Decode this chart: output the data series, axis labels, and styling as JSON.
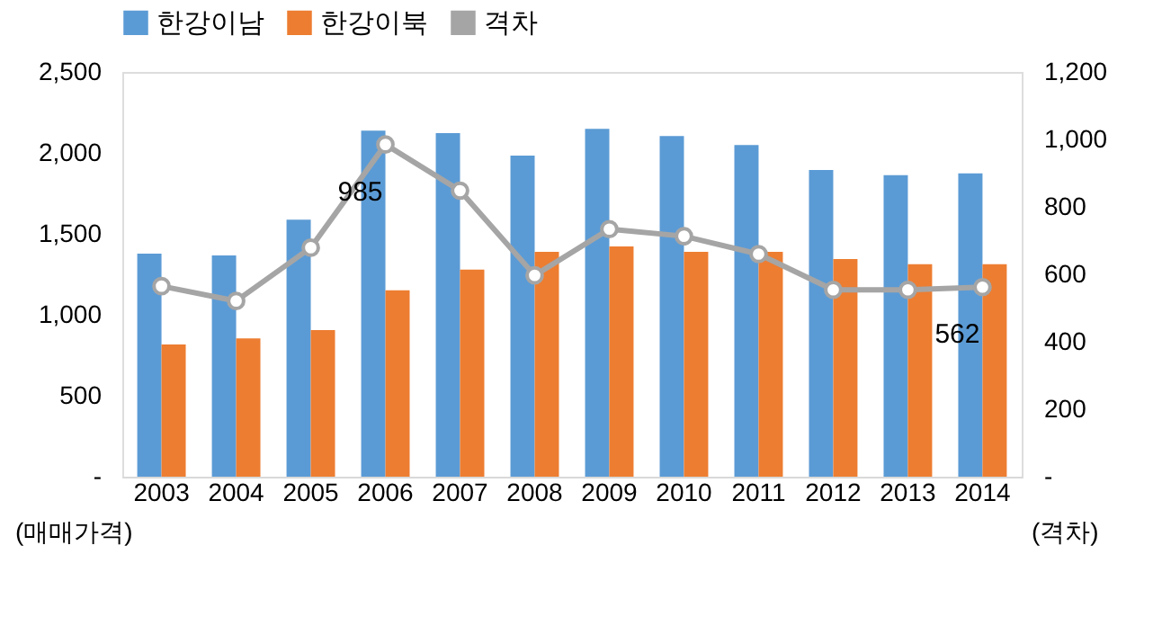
{
  "chart_data": {
    "type": "bar",
    "categories": [
      "2003",
      "2004",
      "2005",
      "2006",
      "2007",
      "2008",
      "2009",
      "2010",
      "2011",
      "2012",
      "2013",
      "2014"
    ],
    "series": [
      {
        "name": "한강이남",
        "type": "bar",
        "color": "#5b9bd5",
        "values": [
          1378,
          1367,
          1587,
          2137,
          2122,
          1983,
          2148,
          2104,
          2049,
          1895,
          1862,
          1873
        ]
      },
      {
        "name": "한강이북",
        "type": "bar",
        "color": "#ed7d31",
        "values": [
          817,
          854,
          905,
          1151,
          1279,
          1389,
          1422,
          1389,
          1389,
          1345,
          1312,
          1312
        ]
      },
      {
        "name": "격차",
        "type": "line",
        "axis": "y2",
        "color": "#a5a5a5",
        "marker": "circle",
        "values": [
          565,
          521,
          679,
          985,
          848,
          597,
          734,
          713,
          660,
          554,
          554,
          562
        ],
        "value_labels": [
          null,
          null,
          null,
          "985",
          null,
          null,
          null,
          null,
          null,
          null,
          null,
          "562"
        ]
      }
    ],
    "ylabel": "(매매가격)",
    "y2label": "(격차)",
    "ylim": [
      0,
      2500
    ],
    "yticks": [
      {
        "value": 0,
        "label": "-"
      },
      500,
      {
        "value": 1000,
        "label": "1,000"
      },
      {
        "value": 1500,
        "label": "1,500"
      },
      {
        "value": 2000,
        "label": "2,000"
      },
      {
        "value": 2500,
        "label": "2,500"
      }
    ],
    "y2lim": [
      0,
      1200
    ],
    "y2ticks": [
      {
        "value": 0,
        "label": "-"
      },
      200,
      400,
      600,
      800,
      {
        "value": 1000,
        "label": "1,000"
      },
      {
        "value": 1200,
        "label": "1,200"
      }
    ],
    "grid": false,
    "legend": "top"
  }
}
